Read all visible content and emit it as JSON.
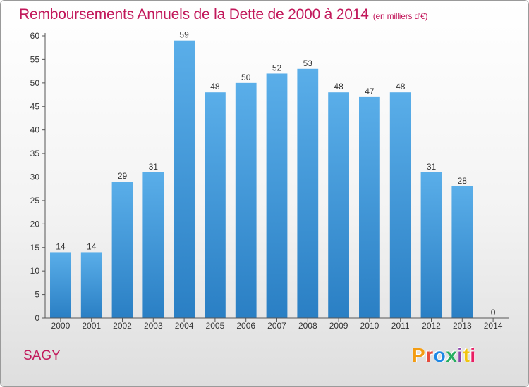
{
  "header": {
    "title": "Remboursements Annuels de la Dette de 2000 à 2014",
    "unit": "(en milliers d'€)"
  },
  "footer": {
    "commune": "SAGY",
    "logo_text": "Proxiti"
  },
  "colors": {
    "title": "#c2185b",
    "bar_top": "#5aaee9",
    "bar_bottom": "#2a7fc4",
    "logo_letters": [
      "#f39c12",
      "#e74c3c",
      "#1e88e5",
      "#27ae60",
      "#8e44ad",
      "#f1c40f",
      "#e91e63"
    ]
  },
  "chart_data": {
    "type": "bar",
    "title": "Remboursements Annuels de la Dette de 2000 à 2014",
    "xlabel": "",
    "ylabel": "",
    "categories": [
      "2000",
      "2001",
      "2002",
      "2003",
      "2004",
      "2005",
      "2006",
      "2007",
      "2008",
      "2009",
      "2010",
      "2011",
      "2012",
      "2013",
      "2014"
    ],
    "values": [
      14,
      14,
      29,
      31,
      59,
      48,
      50,
      52,
      53,
      48,
      47,
      48,
      31,
      28,
      0
    ],
    "ylim": [
      0,
      60
    ],
    "yticks": [
      0,
      5,
      10,
      15,
      20,
      25,
      30,
      35,
      40,
      45,
      50,
      55,
      60
    ],
    "grid": false,
    "legend": "none"
  }
}
